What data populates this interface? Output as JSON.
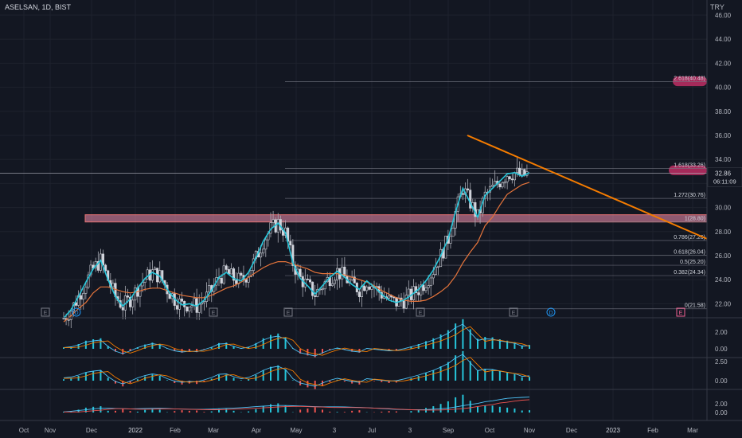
{
  "header": {
    "symbol": "ASELSAN, 1D, BIST",
    "currency": "TRY"
  },
  "chart_data": {
    "type": "line",
    "title": "ASELSAN, 1D, BIST",
    "price_axis": {
      "ticks": [
        46.0,
        44.0,
        42.0,
        40.0,
        38.0,
        36.0,
        34.0,
        32.0,
        30.0,
        28.0,
        26.0,
        24.0,
        22.0
      ],
      "tick_labels": [
        "46.00",
        "44.00",
        "42.00",
        "40.00",
        "38.00",
        "36.00",
        "34.00",
        "32.00",
        "30.00",
        "28.00",
        "26.00",
        "24.00",
        "22.00"
      ]
    },
    "time_axis": {
      "labels": [
        "Oct",
        "Nov",
        "Dec",
        "2022",
        "Feb",
        "Mar",
        "Apr",
        "May",
        "3",
        "Jul",
        "3",
        "Sep",
        "Oct",
        "Nov",
        "Dec",
        "2023",
        "Feb",
        "Mar"
      ]
    },
    "last_price": {
      "value": "32.86",
      "countdown": "06:11:09",
      "color": "#26a69a"
    },
    "fib_levels": [
      {
        "label": "2.618(40.48)",
        "value": 40.48
      },
      {
        "label": "1.618(33.26)",
        "value": 33.26
      },
      {
        "label": "1.272(30.76)",
        "value": 30.76
      },
      {
        "label": "1(28.80)",
        "value": 28.8
      },
      {
        "label": "0.786(27.26)",
        "value": 27.26
      },
      {
        "label": "0.618(26.04)",
        "value": 26.04
      },
      {
        "label": "0.5(25.20)",
        "value": 25.2
      },
      {
        "label": "0.382(24.34)",
        "value": 24.34
      },
      {
        "label": "0(21.58)",
        "value": 21.58
      }
    ],
    "zones": [
      {
        "name": "resistance-band",
        "low": 28.8,
        "high": 29.4,
        "color": "#f48fb1"
      },
      {
        "name": "target-40",
        "low": 40.1,
        "high": 40.9,
        "color": "#a52a5a"
      },
      {
        "name": "target-33",
        "low": 32.7,
        "high": 33.5,
        "color": "#a52a5a"
      }
    ],
    "trendline": {
      "color": "#f57c00",
      "start": {
        "x": "Sep",
        "y": 36.0
      },
      "end": {
        "x": "Feb",
        "y": 27.8
      }
    },
    "series": [
      {
        "name": "",
        "color": "#26c6da",
        "values": [
          20.8,
          21.5,
          22.6,
          23.8,
          24.9,
          25.6,
          24.0,
          22.6,
          21.8,
          22.4,
          23.3,
          24.1,
          24.6,
          24.3,
          23.2,
          22.4,
          21.9,
          22.0,
          21.8,
          22.3,
          23.1,
          24.2,
          24.6,
          24.1,
          23.9,
          24.6,
          25.8,
          27.2,
          28.2,
          28.7,
          27.9,
          25.4,
          24.1,
          23.5,
          22.8,
          23.5,
          24.2,
          24.7,
          24.2,
          23.6,
          23.2,
          23.9,
          23.4,
          22.8,
          22.3,
          22.1,
          22.3,
          22.7,
          23.2,
          23.9,
          24.8,
          26.0,
          27.4,
          29.6,
          31.6,
          30.4,
          29.2,
          31.0,
          31.6,
          32.2,
          32.8,
          32.9,
          32.6,
          32.9
        ]
      },
      {
        "name": "",
        "color": "#e5743b",
        "values": [
          20.5,
          21.0,
          21.6,
          22.1,
          22.9,
          23.4,
          23.4,
          23.2,
          23.0,
          22.9,
          23.0,
          23.2,
          23.3,
          23.3,
          23.1,
          22.9,
          22.7,
          22.6,
          22.5,
          22.5,
          22.7,
          23.0,
          23.3,
          23.5,
          23.8,
          24.2,
          24.6,
          25.0,
          25.3,
          25.5,
          25.5,
          25.3,
          25.1,
          24.9,
          24.6,
          24.5,
          24.5,
          24.5,
          24.4,
          24.2,
          24.0,
          23.8,
          23.5,
          23.1,
          22.8,
          22.5,
          22.3,
          22.2,
          22.2,
          22.3,
          22.6,
          23.0,
          23.5,
          24.3,
          25.4,
          26.3,
          27.1,
          28.5,
          29.2,
          30.2,
          31.1,
          31.5,
          31.9,
          32.1
        ]
      }
    ],
    "indicator_panes": [
      {
        "name": "macd-1",
        "ticks": [
          "2.00",
          "0.00"
        ]
      },
      {
        "name": "macd-2",
        "ticks": [
          "2.50",
          "0.00"
        ]
      },
      {
        "name": "macd-3",
        "ticks": [
          "2.00",
          "0.00"
        ]
      }
    ],
    "event_markers": {
      "earnings": "E",
      "dividend": "D"
    },
    "grid": true
  }
}
